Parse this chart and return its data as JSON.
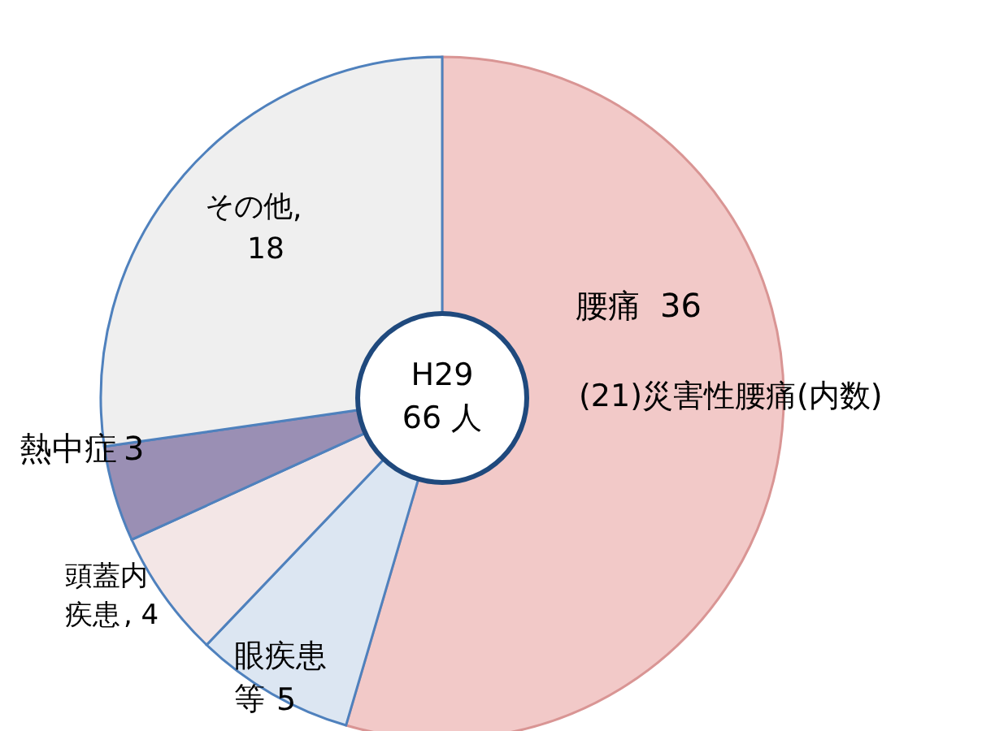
{
  "chart_data": {
    "type": "donut",
    "categories": [
      "腰痛",
      "眼疾患等",
      "頭蓋内疾患",
      "熱中症",
      "その他"
    ],
    "values": [
      36,
      5,
      4,
      3,
      18
    ],
    "colors": [
      "#f2c9c8",
      "#dce6f2",
      "#f3e6e6",
      "#9a8fb4",
      "#efefef"
    ],
    "value_labels": [
      "36",
      "5",
      ", 4",
      "3",
      ",\n18"
    ],
    "annotations": [
      "(21)災害性腰痛(内数)",
      "H29\n66 人"
    ]
  }
}
